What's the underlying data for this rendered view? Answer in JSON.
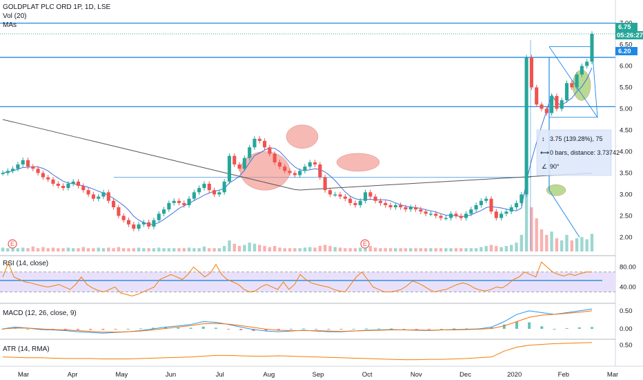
{
  "header": {
    "symbol_line": "GOLDPLAT PLC ORD 1P, 1D, LSE",
    "vol_label": "Vol (20)",
    "mas_label": "MAs"
  },
  "price_tags": {
    "current": "6.75",
    "countdown": "05:26:27",
    "level": "6.20"
  },
  "measure": {
    "line1": "3.75 (139.28%), 75",
    "line2": "0 bars, distance: 3.73742",
    "line3": "90°"
  },
  "earnings_marker": "E",
  "colors": {
    "up": "#26a69a",
    "down": "#ef5350",
    "level_line": "#1e88e5",
    "ma_dark": "#555555",
    "ma_blue": "#3f6fe0",
    "rsi": "#f57c00",
    "rsi_band": "#e9e1fb",
    "macd": "#2196f3",
    "signal": "#ff6d00",
    "highlight": "#f28b82",
    "highlight_green": "#8bc34a",
    "measure_box": "#dbe7fb"
  },
  "chart_data": [
    {
      "type": "candlestick",
      "title": "GOLDPLAT PLC ORD 1P, 1D, LSE",
      "x_ticks": [
        "Mar",
        "Apr",
        "May",
        "Jun",
        "Jul",
        "Aug",
        "Sep",
        "Oct",
        "Nov",
        "Dec",
        "2020",
        "Feb",
        "Mar"
      ],
      "y_ticks": [
        2.0,
        2.5,
        3.0,
        3.5,
        4.0,
        4.5,
        5.0,
        5.5,
        6.0,
        6.5,
        7.0
      ],
      "ylim": [
        1.7,
        7.25
      ],
      "horizontal_levels": [
        7.0,
        6.2,
        5.05,
        3.4
      ],
      "close_series": [
        3.5,
        3.55,
        3.6,
        3.7,
        3.8,
        3.65,
        3.6,
        3.5,
        3.4,
        3.35,
        3.25,
        3.2,
        3.15,
        3.25,
        3.3,
        3.2,
        3.1,
        3.0,
        2.9,
        2.95,
        3.05,
        2.85,
        2.7,
        2.5,
        2.4,
        2.3,
        2.2,
        2.3,
        2.35,
        2.25,
        2.4,
        2.55,
        2.65,
        2.8,
        2.85,
        2.8,
        2.75,
        2.9,
        3.05,
        3.15,
        3.25,
        3.1,
        3.0,
        3.05,
        3.3,
        3.9,
        3.7,
        3.6,
        3.85,
        4.1,
        4.3,
        4.25,
        4.1,
        3.95,
        3.75,
        3.65,
        3.55,
        3.5,
        3.45,
        3.55,
        3.65,
        3.75,
        3.7,
        3.4,
        3.1,
        3.0,
        3.0,
        2.95,
        2.9,
        2.8,
        2.75,
        2.85,
        3.05,
        2.95,
        2.85,
        2.8,
        2.75,
        2.7,
        2.75,
        2.7,
        2.65,
        2.7,
        2.65,
        2.6,
        2.55,
        2.55,
        2.5,
        2.45,
        2.45,
        2.55,
        2.5,
        2.45,
        2.55,
        2.65,
        2.75,
        2.85,
        2.9,
        2.6,
        2.45,
        2.55,
        2.6,
        2.7,
        2.8,
        3.0,
        6.2,
        5.5,
        5.1,
        5.0,
        4.9,
        5.3,
        5.0,
        5.2,
        5.6,
        5.5,
        5.8,
        6.0,
        6.1,
        6.75
      ],
      "mas": [
        {
          "values": [
            4.75,
            3.1,
            3.5
          ]
        },
        {
          "values": [
            3.6,
            2.5,
            3.4,
            2.7,
            5.2
          ]
        }
      ],
      "volume": [
        0.35,
        0.3,
        0.4,
        0.3,
        0.35,
        0.3,
        0.45,
        0.3,
        0.4,
        0.3,
        0.35,
        0.3,
        0.3,
        0.35,
        0.3,
        0.3,
        0.4,
        0.3,
        0.3,
        0.35,
        0.3,
        0.35,
        0.3,
        0.4,
        0.3,
        0.3,
        0.3,
        0.35,
        0.3,
        0.3,
        0.3,
        0.35,
        0.3,
        0.3,
        0.3,
        0.3,
        0.3,
        0.35,
        0.3,
        0.3,
        0.45,
        0.3,
        0.3,
        0.3,
        0.5,
        1.0,
        0.7,
        0.5,
        0.6,
        0.8,
        0.7,
        0.6,
        0.5,
        0.4,
        0.5,
        0.35,
        0.3,
        0.3,
        0.3,
        0.3,
        0.35,
        0.4,
        0.35,
        0.5,
        0.6,
        0.5,
        0.4,
        0.35,
        0.3,
        0.3,
        0.3,
        0.35,
        0.7,
        0.5,
        0.35,
        0.3,
        0.3,
        0.3,
        0.3,
        0.3,
        0.3,
        0.3,
        0.3,
        0.3,
        0.3,
        0.3,
        0.3,
        0.3,
        0.3,
        0.3,
        0.3,
        0.3,
        0.3,
        0.3,
        0.3,
        0.4,
        0.5,
        0.6,
        0.5,
        0.4,
        0.5,
        0.6,
        0.8,
        1.5,
        6.0,
        4.0,
        3.0,
        2.0,
        1.5,
        1.8,
        1.2,
        1.0,
        1.5,
        1.0,
        1.2,
        1.3,
        1.1,
        1.6
      ]
    },
    {
      "type": "line",
      "title": "RSI (14, close)",
      "y_ticks": [
        40.0,
        80.0
      ],
      "bands": [
        30,
        70
      ],
      "ylim": [
        10,
        100
      ],
      "reference_level": 53,
      "values": [
        60,
        88,
        60,
        55,
        50,
        48,
        45,
        42,
        40,
        42,
        45,
        40,
        35,
        45,
        60,
        45,
        38,
        33,
        30,
        35,
        40,
        28,
        25,
        22,
        25,
        30,
        35,
        40,
        55,
        60,
        65,
        60,
        55,
        65,
        80,
        70,
        60,
        68,
        85,
        65,
        55,
        50,
        45,
        35,
        30,
        32,
        40,
        45,
        40,
        35,
        50,
        35,
        45,
        65,
        55,
        48,
        45,
        42,
        40,
        35,
        32,
        30,
        45,
        60,
        70,
        55,
        40,
        35,
        30,
        30,
        32,
        35,
        42,
        52,
        48,
        42,
        35,
        30,
        33,
        35,
        40,
        45,
        48,
        45,
        38,
        34,
        32,
        35,
        40,
        38,
        45,
        55,
        60,
        70,
        65,
        60,
        90,
        80,
        70,
        65,
        62,
        66,
        63,
        67,
        70,
        70
      ]
    },
    {
      "type": "line",
      "title": "MACD (12, 26, close, 9)",
      "y_ticks": [
        0.0,
        0.5
      ],
      "ylim": [
        -0.25,
        0.65
      ],
      "series": [
        {
          "values": [
            0.0,
            0.05,
            0.02,
            -0.02,
            -0.03,
            -0.05,
            -0.08,
            -0.1,
            -0.12,
            -0.1,
            -0.08,
            -0.05,
            0.0,
            0.05,
            0.08,
            0.12,
            0.2,
            0.18,
            0.12,
            0.05,
            -0.02,
            -0.06,
            -0.08,
            -0.06,
            -0.04,
            -0.06,
            -0.08,
            -0.08,
            -0.06,
            -0.04,
            -0.03,
            -0.02,
            -0.03,
            -0.04,
            -0.05,
            -0.03,
            -0.02,
            -0.01,
            0.0,
            0.05,
            0.2,
            0.4,
            0.5,
            0.45,
            0.4,
            0.45,
            0.5,
            0.55
          ]
        },
        {
          "values": [
            0.0,
            0.02,
            0.02,
            0.0,
            -0.02,
            -0.03,
            -0.05,
            -0.07,
            -0.09,
            -0.09,
            -0.08,
            -0.06,
            -0.03,
            0.01,
            0.05,
            0.09,
            0.14,
            0.15,
            0.13,
            0.09,
            0.04,
            -0.01,
            -0.04,
            -0.05,
            -0.05,
            -0.05,
            -0.06,
            -0.07,
            -0.06,
            -0.05,
            -0.04,
            -0.03,
            -0.03,
            -0.03,
            -0.04,
            -0.03,
            -0.03,
            -0.02,
            -0.01,
            0.01,
            0.08,
            0.2,
            0.32,
            0.38,
            0.4,
            0.43,
            0.46,
            0.5
          ]
        }
      ]
    },
    {
      "type": "line",
      "title": "ATR (14, RMA)",
      "y_ticks": [
        0.5
      ],
      "ylim": [
        0.0,
        0.6
      ],
      "values": [
        0.2,
        0.19,
        0.18,
        0.18,
        0.17,
        0.16,
        0.16,
        0.16,
        0.15,
        0.15,
        0.15,
        0.16,
        0.17,
        0.18,
        0.19,
        0.2,
        0.22,
        0.24,
        0.24,
        0.23,
        0.22,
        0.22,
        0.23,
        0.22,
        0.21,
        0.2,
        0.19,
        0.18,
        0.17,
        0.16,
        0.15,
        0.14,
        0.13,
        0.13,
        0.14,
        0.14,
        0.15,
        0.16,
        0.18,
        0.2,
        0.35,
        0.45,
        0.5,
        0.52,
        0.54,
        0.55,
        0.56,
        0.57
      ]
    }
  ]
}
